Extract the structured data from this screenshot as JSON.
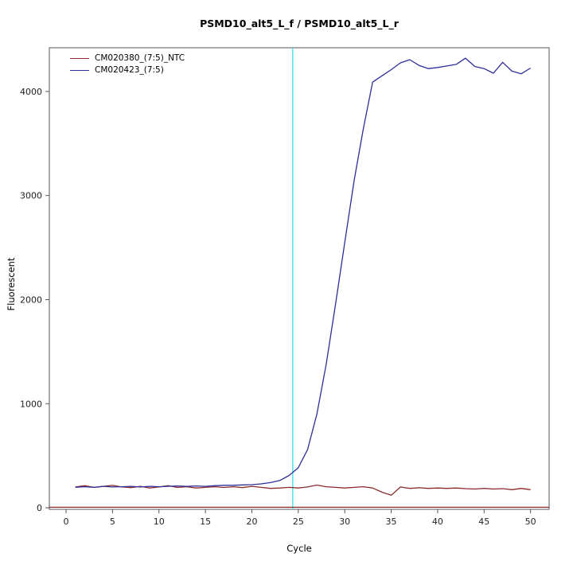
{
  "title": "PSMD10_alt5_L_f / PSMD10_alt5_L_r",
  "chart_data": {
    "type": "line",
    "title": "PSMD10_alt5_L_f / PSMD10_alt5_L_r",
    "xlabel": "Cycle",
    "ylabel": "Fluorescent",
    "xlim": [
      -1.8,
      52
    ],
    "ylim": [
      -15,
      4420
    ],
    "x_ticks": [
      0,
      5,
      10,
      15,
      20,
      25,
      30,
      35,
      40,
      45,
      50
    ],
    "y_ticks": [
      0,
      1000,
      2000,
      3000,
      4000
    ],
    "grid": false,
    "legend_position": "top-left",
    "x": [
      1,
      2,
      3,
      4,
      5,
      6,
      7,
      8,
      9,
      10,
      11,
      12,
      13,
      14,
      15,
      16,
      17,
      18,
      19,
      20,
      21,
      22,
      23,
      24,
      25,
      26,
      27,
      28,
      29,
      30,
      31,
      32,
      33,
      34,
      35,
      36,
      37,
      38,
      39,
      40,
      41,
      42,
      43,
      44,
      45,
      46,
      47,
      48,
      49,
      50
    ],
    "series": [
      {
        "name": "CM020380_(7:5)_NTC",
        "color": "#8b2b2b",
        "values": [
          200,
          212,
          196,
          206,
          215,
          200,
          194,
          206,
          190,
          200,
          212,
          195,
          202,
          190,
          196,
          202,
          195,
          202,
          194,
          206,
          196,
          186,
          190,
          196,
          190,
          200,
          218,
          202,
          196,
          190,
          196,
          202,
          190,
          150,
          120,
          200,
          186,
          192,
          186,
          190,
          186,
          190,
          184,
          180,
          186,
          180,
          184,
          174,
          186,
          174
        ]
      },
      {
        "name": "CM020423_(7:5)",
        "color": "#2e2e99",
        "values": [
          196,
          202,
          196,
          206,
          200,
          202,
          206,
          200,
          206,
          202,
          206,
          210,
          206,
          210,
          206,
          212,
          216,
          216,
          220,
          222,
          230,
          242,
          262,
          310,
          385,
          560,
          900,
          1380,
          1950,
          2550,
          3140,
          3640,
          4090,
          4150,
          4210,
          4275,
          4305,
          4250,
          4220,
          4230,
          4245,
          4260,
          4320,
          4240,
          4220,
          4175,
          4280,
          4195,
          4170,
          4225
        ]
      }
    ],
    "threshold_line": {
      "y": 5,
      "color": "#8b2b2b"
    },
    "ct_line": {
      "x": 24.4,
      "color": "#33e0ee"
    }
  }
}
